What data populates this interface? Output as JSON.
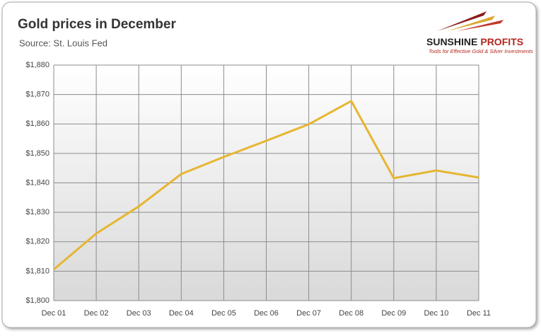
{
  "chart_data": {
    "type": "line",
    "title": "Gold prices in December",
    "subtitle": "Source: St. Louis Fed",
    "categories": [
      "Dec 01",
      "Dec 02",
      "Dec 03",
      "Dec 04",
      "Dec 05",
      "Dec 06",
      "Dec 07",
      "Dec 08",
      "Dec 09",
      "Dec 10",
      "Dec 11"
    ],
    "series": [
      {
        "name": "Gold price",
        "color": "#e6b631",
        "values": [
          1810.6,
          1822.8,
          1832.0,
          1843.0,
          1848.8,
          1854.3,
          1859.9,
          1867.8,
          1841.6,
          1844.2,
          1841.8
        ]
      }
    ],
    "ylim": [
      1800,
      1880
    ],
    "yticks": [
      {
        "value": 1800,
        "label": "$1,800"
      },
      {
        "value": 1810,
        "label": "$1,810"
      },
      {
        "value": 1820,
        "label": "$1,820"
      },
      {
        "value": 1830,
        "label": "$1,830"
      },
      {
        "value": 1840,
        "label": "$1,840"
      },
      {
        "value": 1850,
        "label": "$1,850"
      },
      {
        "value": 1860,
        "label": "$1,860"
      },
      {
        "value": 1870,
        "label": "$1,870"
      },
      {
        "value": 1880,
        "label": "$1,880"
      }
    ],
    "grid": true
  },
  "logo": {
    "name_1": "SUNSHINE",
    "name_2": "PROFITS",
    "tagline": "Tools for Effective Gold & Silver Investments"
  }
}
